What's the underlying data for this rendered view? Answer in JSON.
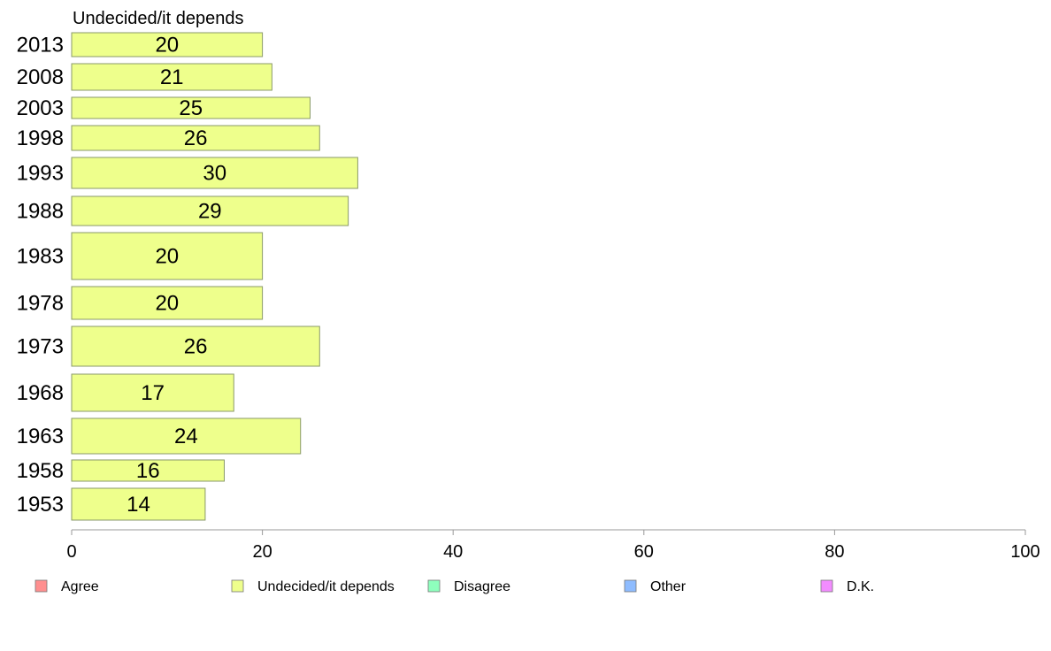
{
  "chart_data": {
    "type": "bar",
    "orientation": "horizontal",
    "title": "Undecided/it depends",
    "categories": [
      "2013",
      "2008",
      "2003",
      "1998",
      "1993",
      "1988",
      "1983",
      "1978",
      "1973",
      "1968",
      "1963",
      "1958",
      "1953"
    ],
    "series": [
      {
        "name": "Undecided/it depends",
        "color": "#eeff8c",
        "values": [
          20,
          21,
          25,
          26,
          30,
          29,
          20,
          20,
          26,
          17,
          24,
          16,
          14
        ]
      }
    ],
    "xlim": [
      0,
      100
    ],
    "xticks": [
      0,
      20,
      40,
      60,
      80,
      100
    ],
    "grid": false,
    "legend": {
      "position": "bottom",
      "entries": [
        {
          "label": "Agree",
          "color": "#ff8f8f"
        },
        {
          "label": "Undecided/it depends",
          "color": "#eeff8c"
        },
        {
          "label": "Disagree",
          "color": "#8effbd"
        },
        {
          "label": "Other",
          "color": "#8ebcff"
        },
        {
          "label": "D.K.",
          "color": "#f28cff"
        }
      ]
    }
  }
}
